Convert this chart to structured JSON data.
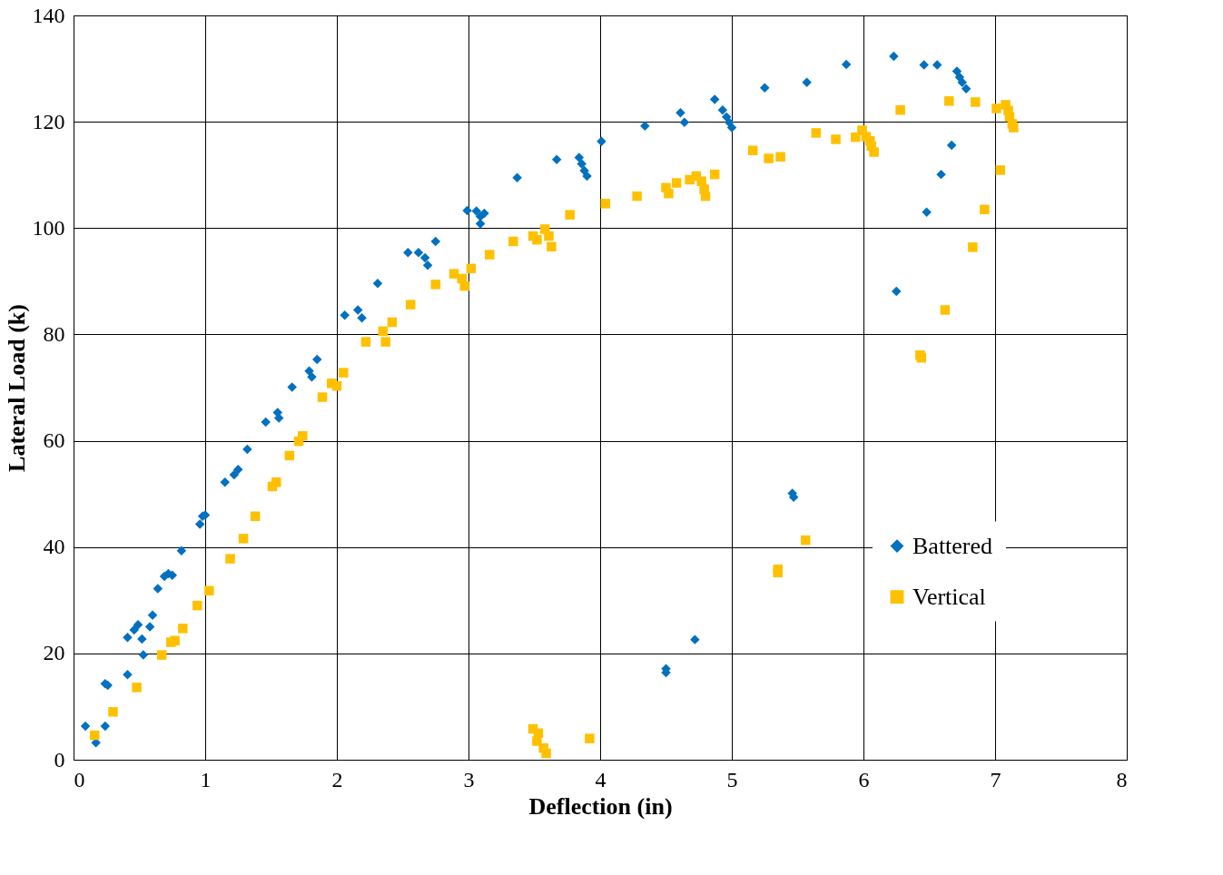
{
  "chart_data": {
    "type": "scatter",
    "xlabel": "Deflection (in)",
    "ylabel": "Lateral Load (k)",
    "xlim": [
      0,
      8
    ],
    "xticks": [
      0,
      1,
      2,
      3,
      4,
      5,
      6,
      7,
      8
    ],
    "ylim": [
      0,
      140
    ],
    "yticks": [
      0,
      20,
      40,
      60,
      80,
      100,
      120,
      140
    ],
    "grid": true,
    "legend": "right",
    "series": [
      {
        "name": "Battered",
        "color": "#0070c0",
        "marker": "diamond",
        "x": [
          0.09,
          0.17,
          0.24,
          0.24,
          0.26,
          0.41,
          0.41,
          0.46,
          0.49,
          0.52,
          0.53,
          0.58,
          0.6,
          0.64,
          0.69,
          0.72,
          0.75,
          0.82,
          0.96,
          0.98,
          1.0,
          1.15,
          1.22,
          1.25,
          1.32,
          1.46,
          1.55,
          1.56,
          1.66,
          1.79,
          1.81,
          1.85,
          2.06,
          2.16,
          2.19,
          2.31,
          2.54,
          2.62,
          2.67,
          2.69,
          2.75,
          2.99,
          3.06,
          3.09,
          3.12,
          3.09,
          3.37,
          3.67,
          3.84,
          3.86,
          3.88,
          3.9,
          4.01,
          4.34,
          4.61,
          4.64,
          4.87,
          4.93,
          4.96,
          4.98,
          5.0,
          5.25,
          5.57,
          5.87,
          6.23,
          6.46,
          6.56,
          6.71,
          6.73,
          6.75,
          6.78,
          6.67,
          6.59,
          6.48,
          6.25,
          5.46,
          5.47,
          4.72,
          4.5,
          4.5
        ],
        "values": [
          6.3,
          3.2,
          6.3,
          14.3,
          14,
          16,
          23,
          24.4,
          25.4,
          22.7,
          19.7,
          25,
          27.2,
          32.2,
          34.5,
          35,
          34.7,
          39.3,
          44.3,
          45.8,
          46,
          52.2,
          53.6,
          54.6,
          58.4,
          63.5,
          65.3,
          64.3,
          70.1,
          73.1,
          72,
          75.3,
          83.6,
          84.6,
          83.1,
          89.6,
          95.4,
          95.4,
          94.4,
          93,
          97.5,
          103.3,
          103.2,
          102.2,
          102.8,
          100.8,
          109.5,
          112.9,
          113.3,
          112.1,
          110.8,
          109.8,
          116.3,
          119.2,
          121.7,
          119.9,
          124.2,
          122.2,
          120.9,
          119.9,
          118.9,
          126.4,
          127.4,
          130.8,
          132.3,
          130.7,
          130.7,
          129.5,
          128.4,
          127.4,
          126.2,
          115.6,
          110.1,
          103,
          88.1,
          50.1,
          49.4,
          22.6,
          17.1,
          16.4
        ]
      },
      {
        "name": "Vertical",
        "color": "#ffc000",
        "marker": "square",
        "x": [
          0.16,
          0.3,
          0.48,
          0.67,
          0.74,
          0.77,
          0.83,
          0.94,
          1.03,
          1.19,
          1.29,
          1.38,
          1.51,
          1.54,
          1.64,
          1.71,
          1.74,
          1.89,
          1.96,
          2.0,
          2.05,
          2.22,
          2.35,
          2.37,
          2.42,
          2.56,
          2.75,
          2.89,
          2.95,
          2.97,
          3.02,
          3.16,
          3.34,
          3.49,
          3.52,
          3.58,
          3.61,
          3.63,
          3.77,
          4.04,
          4.28,
          4.5,
          4.52,
          4.58,
          4.68,
          4.73,
          4.77,
          4.79,
          4.8,
          4.87,
          5.16,
          5.28,
          5.37,
          5.64,
          5.79,
          5.94,
          5.99,
          6.02,
          6.05,
          6.06,
          6.08,
          6.28,
          6.65,
          6.85,
          7.01,
          7.08,
          7.1,
          7.11,
          7.13,
          7.14,
          7.04,
          6.92,
          6.83,
          6.62,
          6.43,
          6.44,
          5.56,
          5.35,
          5.35,
          3.49,
          3.53,
          3.52,
          3.57,
          3.59,
          3.92
        ],
        "values": [
          4.6,
          9,
          13.6,
          19.7,
          22.1,
          22.4,
          24.7,
          29,
          31.8,
          37.8,
          41.6,
          45.8,
          51.4,
          52.2,
          57.2,
          59.9,
          60.9,
          68.2,
          70.8,
          70.3,
          72.8,
          78.6,
          80.6,
          78.6,
          82.3,
          85.6,
          89.4,
          91.4,
          90.5,
          89.1,
          92.4,
          95,
          97.5,
          98.5,
          97.8,
          99.8,
          98.5,
          96.5,
          102.5,
          104.6,
          106,
          107.6,
          106.5,
          108.5,
          109.1,
          109.8,
          108.8,
          107.3,
          106,
          110.1,
          114.6,
          113.1,
          113.4,
          117.9,
          116.7,
          117.1,
          118.4,
          117.2,
          116.4,
          115.4,
          114.3,
          122.2,
          123.9,
          123.7,
          122.5,
          123.2,
          122.1,
          120.9,
          119.6,
          118.9,
          110.9,
          103.5,
          96.4,
          84.6,
          76.1,
          75.6,
          41.3,
          35.8,
          35.2,
          5.8,
          5,
          3.5,
          2.2,
          1.2,
          4
        ]
      }
    ]
  }
}
